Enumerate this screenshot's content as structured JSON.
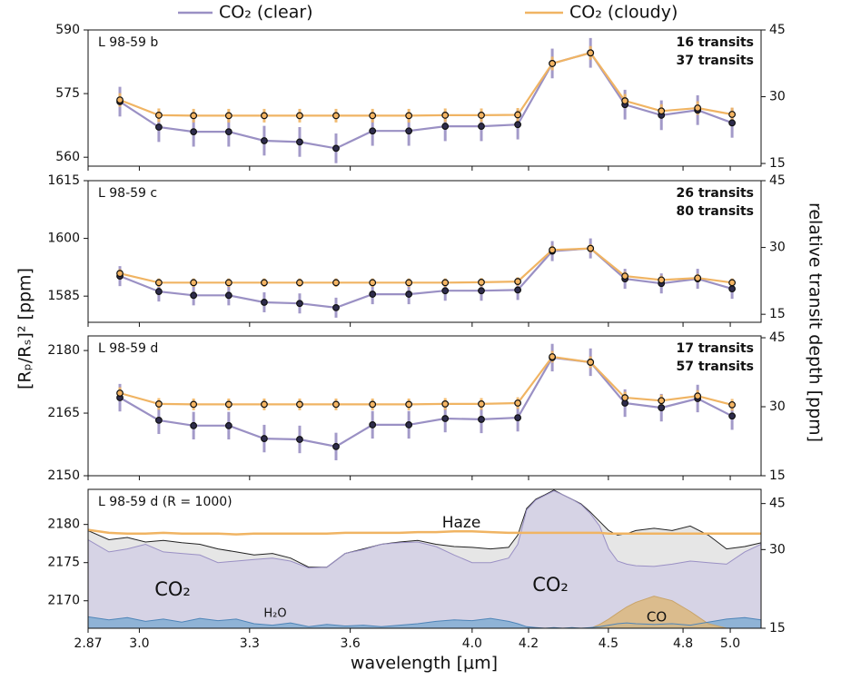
{
  "legend": [
    {
      "name": "CO₂ (clear)",
      "color": "#9a90c4"
    },
    {
      "name": "CO₂ (cloudy)",
      "color": "#f0b463"
    }
  ],
  "ylabel": "[Rₚ/Rₛ]² [ppm]",
  "y2label": "relative transit depth [ppm]",
  "axes": {
    "xlabel": "wavelength [μm]",
    "xscale": "log",
    "xlim": [
      2.87,
      5.135
    ],
    "xticks": [
      2.87,
      {
        "value": 3.0,
        "label": "3.0"
      },
      3.3,
      3.6,
      {
        "value": 4.0,
        "label": "4.0"
      },
      4.2,
      4.5,
      4.8,
      {
        "value": 5.0,
        "label": "5.0"
      }
    ]
  },
  "chart_data": [
    {
      "type": "line",
      "title": "L 98-59 b",
      "x": [
        2.95,
        3.051,
        3.144,
        3.241,
        3.342,
        3.446,
        3.556,
        3.67,
        3.787,
        3.908,
        4.032,
        4.161,
        4.287,
        4.431,
        4.565,
        4.711,
        4.861,
        5.008
      ],
      "series": [
        {
          "label": "16 transits",
          "color": "#9a90c4",
          "marker": "#2e2c4c",
          "error": 3.5,
          "values": [
            573.1,
            567.1,
            566.0,
            566.0,
            563.9,
            563.6,
            562.1,
            566.2,
            566.2,
            567.3,
            567.3,
            567.7,
            582.1,
            584.6,
            572.4,
            569.9,
            571.1,
            568.1
          ]
        },
        {
          "label": "37 transits",
          "color": "#f0b463",
          "marker": "#f5b563",
          "error": 1.6,
          "values": [
            573.5,
            569.9,
            569.8,
            569.8,
            569.8,
            569.8,
            569.8,
            569.8,
            569.8,
            569.9,
            569.9,
            570.0,
            582.1,
            584.6,
            573.3,
            570.9,
            571.6,
            570.1
          ]
        }
      ],
      "ylim": [
        557.9,
        590
      ],
      "yticks": [
        560,
        575,
        590
      ],
      "y2lim": [
        14.4,
        45
      ],
      "y2ticks": [
        15,
        30,
        45
      ]
    },
    {
      "type": "line",
      "title": "L 98-59 c",
      "x": [
        2.95,
        3.051,
        3.144,
        3.241,
        3.342,
        3.446,
        3.556,
        3.67,
        3.787,
        3.908,
        4.032,
        4.161,
        4.287,
        4.431,
        4.565,
        4.711,
        4.861,
        5.008
      ],
      "series": [
        {
          "label": "26 transits",
          "color": "#9a90c4",
          "marker": "#2e2c4c",
          "error": 2.6,
          "values": [
            1590.2,
            1586.2,
            1585.2,
            1585.2,
            1583.4,
            1583.1,
            1582.0,
            1585.5,
            1585.5,
            1586.4,
            1586.4,
            1586.6,
            1596.7,
            1597.4,
            1589.5,
            1588.3,
            1589.5,
            1586.9
          ]
        },
        {
          "label": "80 transits",
          "color": "#f0b463",
          "marker": "#f5b563",
          "error": 1.1,
          "values": [
            1590.9,
            1588.5,
            1588.5,
            1588.5,
            1588.5,
            1588.5,
            1588.5,
            1588.5,
            1588.5,
            1588.5,
            1588.6,
            1588.8,
            1597.0,
            1597.4,
            1590.2,
            1589.2,
            1589.7,
            1588.5
          ]
        }
      ],
      "ylim": [
        1578.2,
        1615
      ],
      "yticks": [
        1585,
        1600,
        1615
      ],
      "y2lim": [
        13.2,
        45
      ],
      "y2ticks": [
        15,
        30,
        45
      ]
    },
    {
      "type": "line",
      "title": "L 98-59 d",
      "x": [
        2.95,
        3.051,
        3.144,
        3.241,
        3.342,
        3.446,
        3.556,
        3.67,
        3.787,
        3.908,
        4.032,
        4.161,
        4.287,
        4.431,
        4.565,
        4.711,
        4.861,
        5.008
      ],
      "series": [
        {
          "label": "17 transits",
          "color": "#9a90c4",
          "marker": "#2e2c4c",
          "error": 3.3,
          "values": [
            2168.7,
            2163.3,
            2162.0,
            2162.0,
            2158.9,
            2158.7,
            2157.0,
            2162.2,
            2162.2,
            2163.7,
            2163.5,
            2163.9,
            2178.3,
            2177.2,
            2167.4,
            2166.3,
            2168.5,
            2164.3
          ]
        },
        {
          "label": "57 transits",
          "color": "#f0b463",
          "marker": "#f5b563",
          "error": 1.4,
          "values": [
            2169.8,
            2167.2,
            2167.1,
            2167.1,
            2167.1,
            2167.1,
            2167.1,
            2167.1,
            2167.1,
            2167.2,
            2167.2,
            2167.4,
            2178.5,
            2177.2,
            2168.7,
            2168.0,
            2169.1,
            2167.0
          ]
        }
      ],
      "ylim": [
        2150,
        2183.5
      ],
      "yticks": [
        2150,
        2165,
        2180
      ],
      "y2lim": [
        15,
        45.4
      ],
      "y2ticks": [
        15,
        30,
        45
      ]
    },
    {
      "type": "area",
      "title": "L 98-59 d (R = 1000)",
      "x": [
        2.87,
        2.922,
        2.969,
        3.016,
        3.063,
        3.112,
        3.161,
        3.211,
        3.262,
        3.313,
        3.366,
        3.419,
        3.473,
        3.528,
        3.584,
        3.641,
        3.698,
        3.757,
        3.816,
        3.877,
        3.938,
        4.0,
        4.064,
        4.128,
        4.161,
        4.193,
        4.226,
        4.26,
        4.293,
        4.326,
        4.361,
        4.395,
        4.431,
        4.466,
        4.501,
        4.536,
        4.572,
        4.608,
        4.681,
        4.755,
        4.83,
        4.906,
        4.984,
        5.063,
        5.135
      ],
      "series": [
        {
          "style": "fill-line",
          "color": "#222222",
          "fill": "#e6e6e6",
          "values": [
            2179.2,
            2178.0,
            2178.3,
            2177.7,
            2177.9,
            2177.6,
            2177.4,
            2176.8,
            2176.4,
            2176.0,
            2176.2,
            2175.6,
            2174.4,
            2174.4,
            2176.2,
            2176.8,
            2177.4,
            2177.7,
            2177.9,
            2177.4,
            2177.1,
            2177.0,
            2176.8,
            2177.0,
            2178.6,
            2182.1,
            2183.3,
            2183.9,
            2184.5,
            2183.9,
            2183.3,
            2182.7,
            2181.6,
            2180.4,
            2179.2,
            2178.6,
            2178.8,
            2179.2,
            2179.5,
            2179.2,
            2179.8,
            2178.6,
            2176.8,
            2177.1,
            2177.6
          ]
        },
        {
          "style": "fill-line",
          "color": "#9a90c4",
          "fill": "#d6d3e5",
          "labels": [
            "CO₂",
            "CO₂"
          ],
          "values": [
            2178.0,
            2176.4,
            2176.8,
            2177.4,
            2176.4,
            2176.2,
            2176.0,
            2175.0,
            2175.2,
            2175.4,
            2175.6,
            2175.2,
            2174.3,
            2174.4,
            2176.2,
            2176.7,
            2177.4,
            2177.6,
            2177.7,
            2177.1,
            2176.0,
            2175.0,
            2175.0,
            2175.6,
            2177.4,
            2181.9,
            2183.2,
            2183.8,
            2184.4,
            2183.9,
            2183.3,
            2182.6,
            2181.4,
            2179.8,
            2176.8,
            2175.2,
            2174.8,
            2174.6,
            2174.5,
            2174.8,
            2175.2,
            2175.0,
            2174.8,
            2176.4,
            2177.4
          ]
        },
        {
          "style": "fill-line",
          "color": "#4f85b8",
          "fill": "#8fb3d6",
          "labels": [
            "H₂O"
          ],
          "values": [
            2167.9,
            2167.5,
            2167.8,
            2167.3,
            2167.6,
            2167.2,
            2167.7,
            2167.4,
            2167.6,
            2167.0,
            2166.8,
            2167.1,
            2166.6,
            2166.9,
            2166.7,
            2166.8,
            2166.6,
            2166.8,
            2167.0,
            2167.3,
            2167.5,
            2167.4,
            2167.7,
            2167.3,
            2167.0,
            2166.6,
            2166.5,
            2166.4,
            2166.5,
            2166.4,
            2166.5,
            2166.4,
            2166.5,
            2166.6,
            2166.8,
            2167.0,
            2167.1,
            2167.0,
            2166.9,
            2167.0,
            2166.8,
            2167.2,
            2167.6,
            2167.8,
            2167.5
          ]
        },
        {
          "style": "fill",
          "color": "#c9a46a",
          "fill": "#dcb77e",
          "labels": [
            "CO"
          ],
          "values": [
            null,
            null,
            null,
            null,
            null,
            null,
            null,
            null,
            null,
            null,
            null,
            null,
            null,
            null,
            null,
            null,
            null,
            null,
            null,
            null,
            null,
            null,
            null,
            null,
            null,
            null,
            null,
            null,
            null,
            null,
            null,
            null,
            2166.4,
            2166.9,
            2167.6,
            2168.4,
            2169.2,
            2169.8,
            2170.6,
            2170.0,
            2168.6,
            2167.0,
            2166.4,
            null,
            null
          ]
        },
        {
          "style": "line",
          "color": "#f0b463",
          "labels": [
            "Haze"
          ],
          "values": [
            2179.3,
            2178.9,
            2178.8,
            2178.8,
            2178.9,
            2178.8,
            2178.8,
            2178.8,
            2178.7,
            2178.8,
            2178.8,
            2178.8,
            2178.8,
            2178.8,
            2178.9,
            2178.9,
            2178.9,
            2178.9,
            2179.0,
            2179.0,
            2179.1,
            2179.1,
            2179.0,
            2178.9,
            2178.9,
            2178.9,
            2178.9,
            2178.9,
            2178.9,
            2178.9,
            2178.9,
            2178.9,
            2178.9,
            2178.9,
            2178.8,
            2178.8,
            2178.8,
            2178.8,
            2178.8,
            2178.8,
            2178.8,
            2178.8,
            2178.8,
            2178.8,
            2178.8
          ]
        }
      ],
      "ylim": [
        2166.4,
        2184.6
      ],
      "yticks": [
        2170,
        2175,
        2180
      ],
      "y2scale": "log",
      "y2lim": [
        15,
        51
      ],
      "y2ticks": [
        15,
        30,
        45
      ]
    }
  ]
}
